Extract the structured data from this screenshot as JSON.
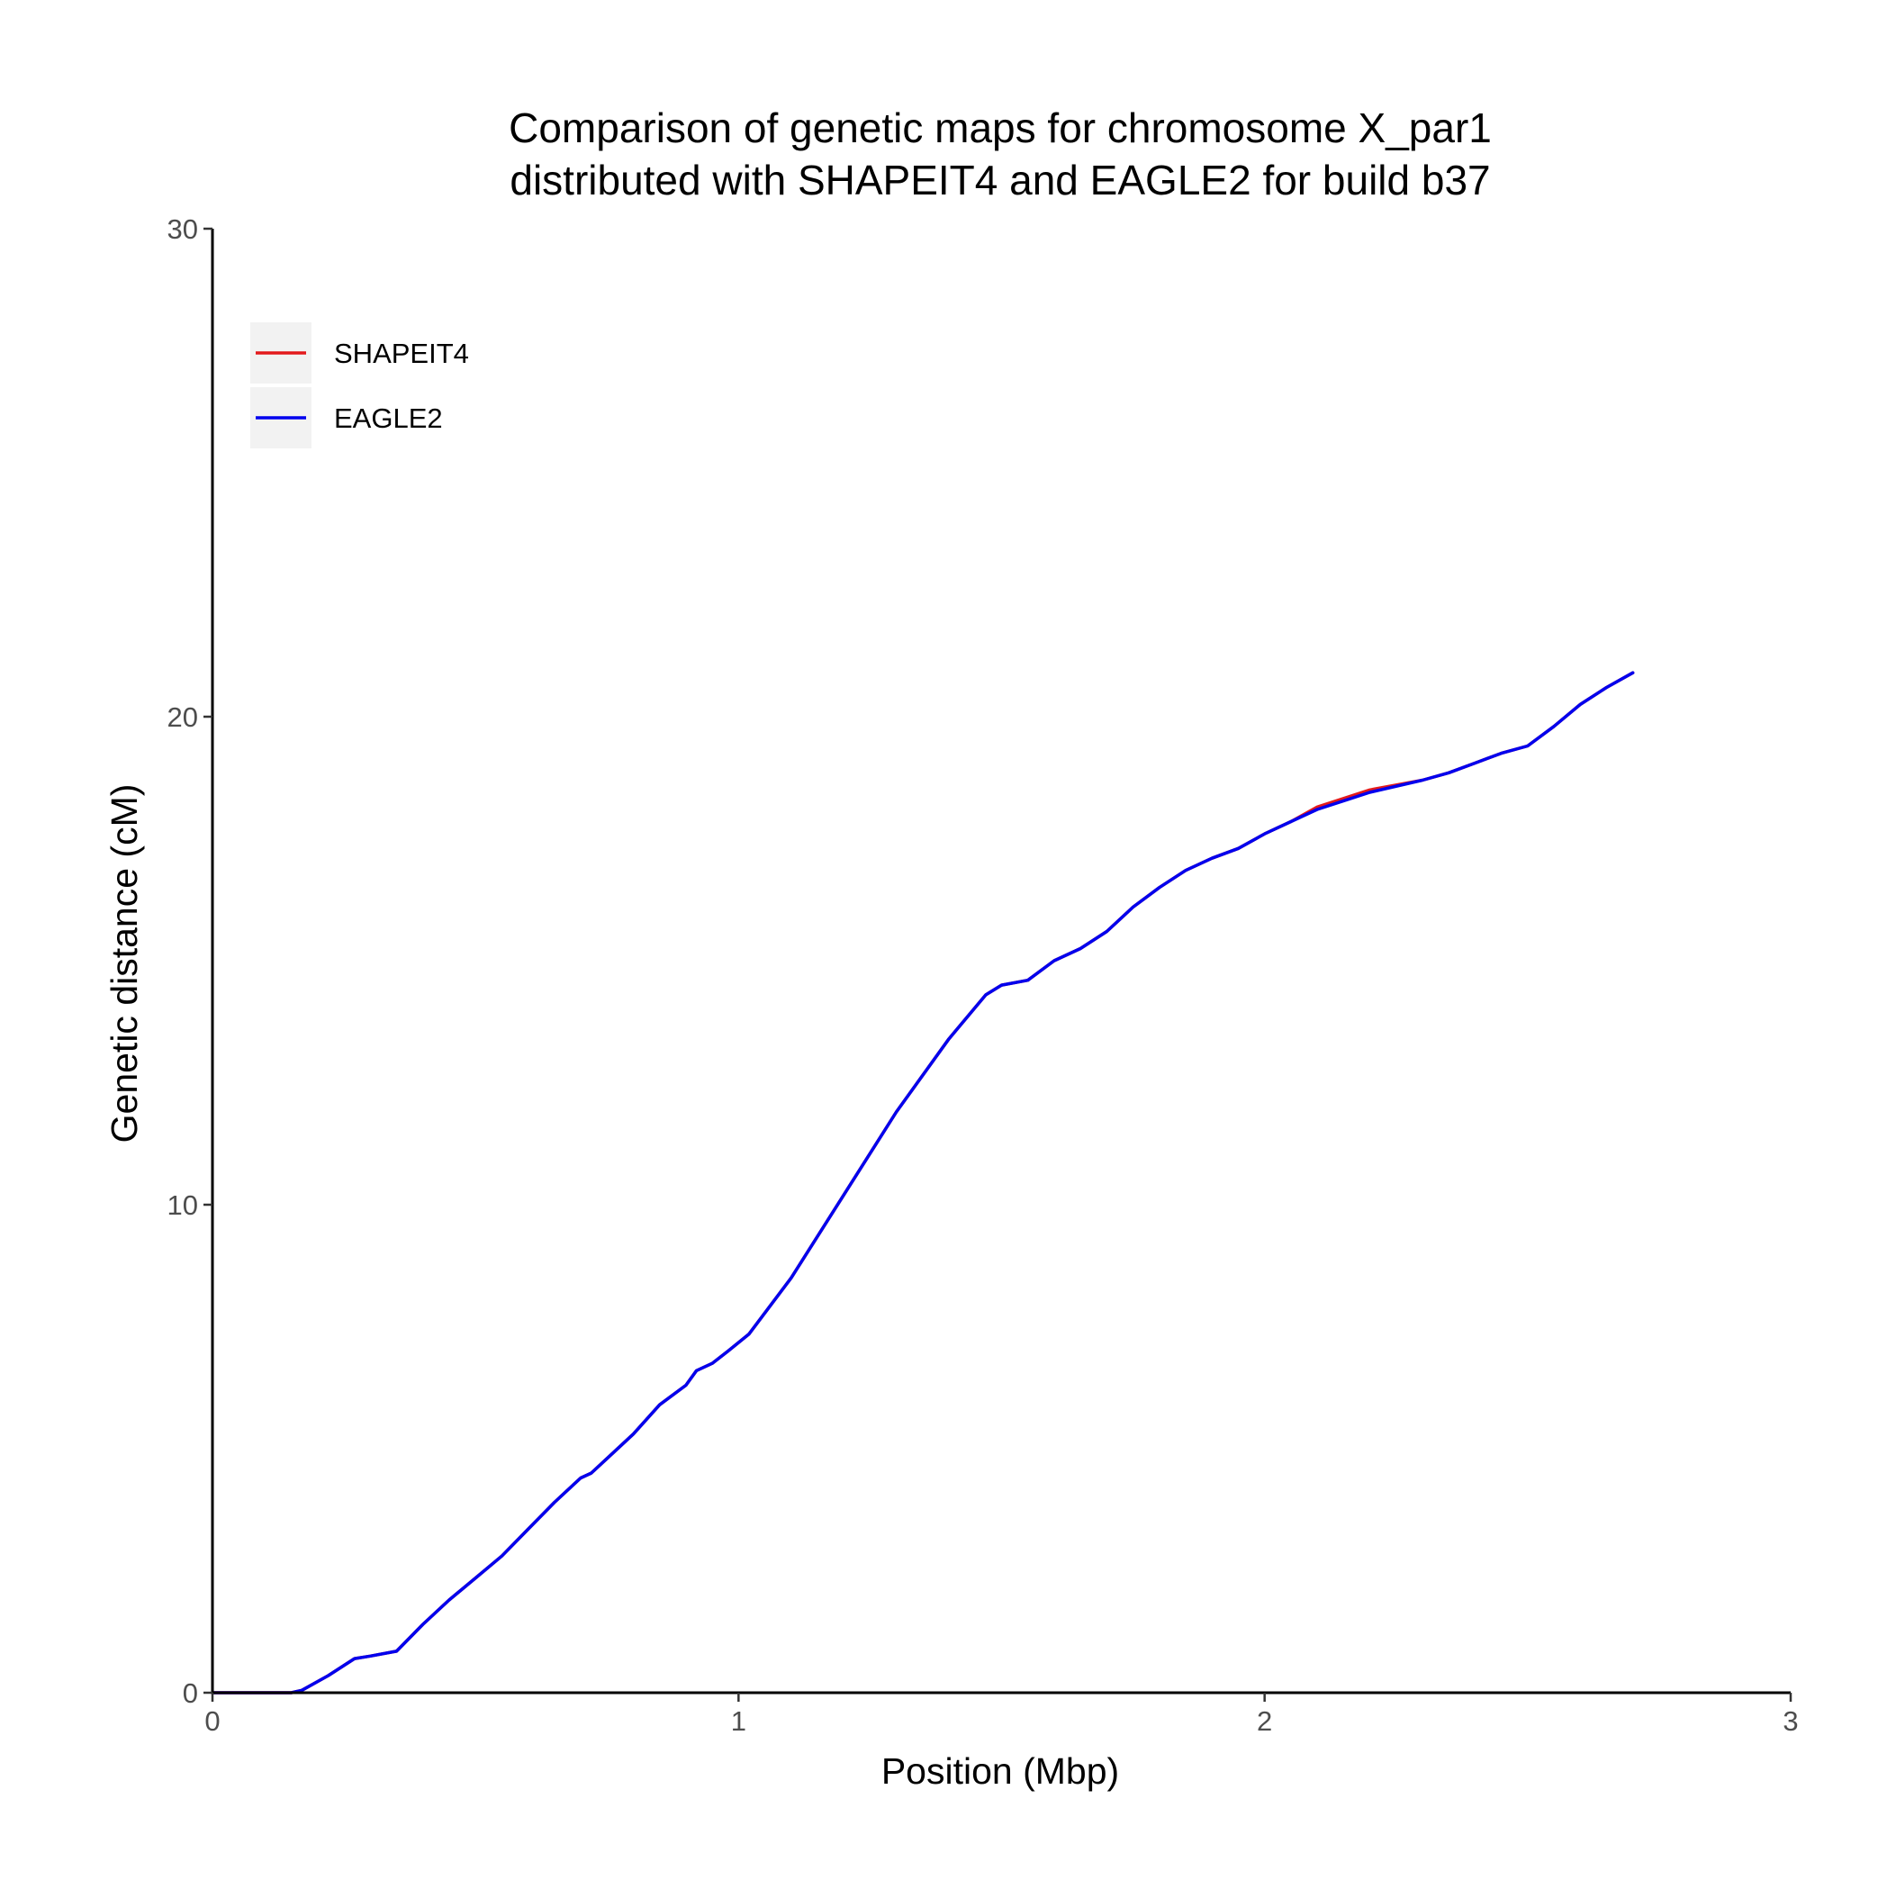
{
  "chart_data": {
    "type": "line",
    "title": [
      "Comparison of genetic maps for chromosome X_par1",
      "distributed with SHAPEIT4 and EAGLE2 for build b37"
    ],
    "xlabel": "Position (Mbp)",
    "ylabel": "Genetic distance (cM)",
    "xlim": [
      0,
      3
    ],
    "ylim": [
      0,
      30
    ],
    "xticks": [
      0,
      1,
      2,
      3
    ],
    "yticks": [
      0,
      10,
      20,
      30
    ],
    "xtick_labels": [
      "0",
      "1",
      "2",
      "3"
    ],
    "ytick_labels": [
      "0",
      "10",
      "20",
      "30"
    ],
    "grid": false,
    "legend_position": "top-left",
    "series": [
      {
        "name": "SHAPEIT4",
        "color": "#e31a1c",
        "x": [
          0,
          0.15,
          0.17,
          0.22,
          0.27,
          0.3,
          0.35,
          0.4,
          0.45,
          0.5,
          0.55,
          0.6,
          0.65,
          0.7,
          0.72,
          0.75,
          0.8,
          0.85,
          0.9,
          0.92,
          0.95,
          0.98,
          1.02,
          1.1,
          1.2,
          1.3,
          1.4,
          1.47,
          1.5,
          1.55,
          1.6,
          1.65,
          1.7,
          1.75,
          1.8,
          1.85,
          1.9,
          1.95,
          2.0,
          2.05,
          2.1,
          2.2,
          2.3,
          2.35,
          2.4,
          2.45,
          2.5,
          2.55,
          2.6,
          2.65,
          2.7
        ],
        "y": [
          0,
          0,
          0.05,
          0.35,
          0.7,
          0.75,
          0.85,
          1.4,
          1.9,
          2.35,
          2.8,
          3.35,
          3.9,
          4.4,
          4.5,
          4.8,
          5.3,
          5.9,
          6.3,
          6.6,
          6.75,
          7.0,
          7.35,
          8.5,
          10.2,
          11.9,
          13.4,
          14.3,
          14.5,
          14.6,
          15.0,
          15.25,
          15.6,
          16.1,
          16.5,
          16.85,
          17.1,
          17.3,
          17.6,
          17.85,
          18.15,
          18.5,
          18.7,
          18.85,
          19.05,
          19.25,
          19.4,
          19.8,
          20.25,
          20.6,
          20.9
        ]
      },
      {
        "name": "EAGLE2",
        "color": "#0000ee",
        "x": [
          0,
          0.15,
          0.17,
          0.22,
          0.27,
          0.3,
          0.35,
          0.4,
          0.45,
          0.5,
          0.55,
          0.6,
          0.65,
          0.7,
          0.72,
          0.75,
          0.8,
          0.85,
          0.9,
          0.92,
          0.95,
          0.98,
          1.02,
          1.1,
          1.2,
          1.3,
          1.4,
          1.47,
          1.5,
          1.55,
          1.6,
          1.65,
          1.7,
          1.75,
          1.8,
          1.85,
          1.9,
          1.95,
          2.0,
          2.05,
          2.1,
          2.2,
          2.3,
          2.35,
          2.4,
          2.45,
          2.5,
          2.55,
          2.6,
          2.65,
          2.7
        ],
        "y": [
          0,
          0,
          0.05,
          0.35,
          0.7,
          0.75,
          0.85,
          1.4,
          1.9,
          2.35,
          2.8,
          3.35,
          3.9,
          4.4,
          4.5,
          4.8,
          5.3,
          5.9,
          6.3,
          6.6,
          6.75,
          7.0,
          7.35,
          8.5,
          10.2,
          11.9,
          13.4,
          14.3,
          14.5,
          14.6,
          15.0,
          15.25,
          15.6,
          16.1,
          16.5,
          16.85,
          17.1,
          17.3,
          17.6,
          17.85,
          18.1,
          18.45,
          18.7,
          18.85,
          19.05,
          19.25,
          19.4,
          19.8,
          20.25,
          20.6,
          20.9
        ]
      }
    ]
  }
}
